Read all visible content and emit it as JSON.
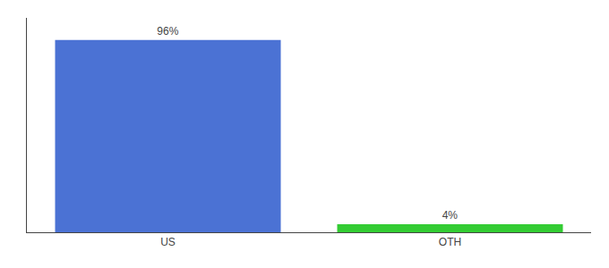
{
  "chart_data": {
    "type": "bar",
    "categories": [
      "US",
      "OTH"
    ],
    "values": [
      96,
      4
    ],
    "colors": [
      "#4b72d4",
      "#33cc33"
    ],
    "value_labels": [
      "96%",
      "4%"
    ],
    "data_labels": true,
    "ylim": [
      0,
      107
    ],
    "grid": false,
    "tick_labels": "x"
  }
}
